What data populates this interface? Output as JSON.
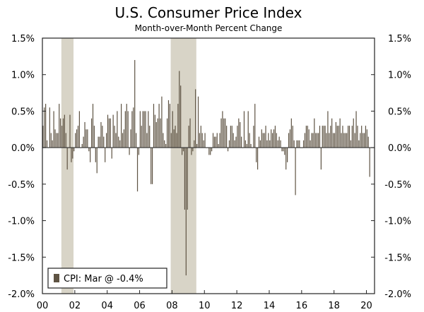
{
  "chart_data": {
    "type": "bar",
    "title": "U.S. Consumer Price Index",
    "subtitle": "Month-over-Month Percent Change",
    "xlabel": "",
    "ylabel": "",
    "ylim": [
      -2.0,
      1.5
    ],
    "y_ticks": [
      "1.5%",
      "1.0%",
      "0.5%",
      "0.0%",
      "-0.5%",
      "-1.0%",
      "-1.5%",
      "-2.0%"
    ],
    "y_tick_values": [
      1.5,
      1.0,
      0.5,
      0.0,
      -0.5,
      -1.0,
      -1.5,
      -2.0
    ],
    "x_ticks": [
      "00",
      "02",
      "04",
      "06",
      "08",
      "10",
      "12",
      "14",
      "16",
      "18",
      "20"
    ],
    "x_tick_years": [
      2000,
      2002,
      2004,
      2006,
      2008,
      2010,
      2012,
      2014,
      2016,
      2018,
      2020
    ],
    "x_range_years": [
      2000,
      2020.5
    ],
    "recession_shading": [
      {
        "start": 2001.17,
        "end": 2001.92
      },
      {
        "start": 2007.92,
        "end": 2009.5
      }
    ],
    "series": [
      {
        "name": "CPI",
        "start": "2000-01",
        "values": [
          0.3,
          0.55,
          0.6,
          0.1,
          0.0,
          0.55,
          0.2,
          0.1,
          0.5,
          0.25,
          0.2,
          0.2,
          0.6,
          0.4,
          0.3,
          0.4,
          0.45,
          0.2,
          -0.3,
          0.0,
          0.45,
          -0.2,
          -0.15,
          -0.05,
          0.2,
          0.25,
          0.3,
          0.5,
          0.0,
          0.05,
          0.15,
          0.35,
          0.25,
          0.25,
          -0.05,
          -0.2,
          0.4,
          0.6,
          0.3,
          -0.2,
          -0.35,
          0.15,
          0.15,
          0.35,
          0.3,
          0.15,
          -0.2,
          0.2,
          0.45,
          0.4,
          0.4,
          -0.15,
          0.45,
          0.3,
          0.2,
          0.5,
          0.15,
          0.1,
          0.6,
          0.2,
          0.25,
          0.5,
          0.6,
          0.5,
          -0.1,
          0.25,
          0.5,
          0.55,
          1.2,
          0.2,
          -0.6,
          -0.1,
          0.5,
          0.3,
          0.5,
          0.5,
          0.5,
          0.2,
          0.5,
          0.3,
          -0.5,
          -0.5,
          0.6,
          0.45,
          0.35,
          0.4,
          0.6,
          0.4,
          0.7,
          0.2,
          0.1,
          0.05,
          0.4,
          0.65,
          0.6,
          0.2,
          0.5,
          0.25,
          0.3,
          0.2,
          0.6,
          1.05,
          0.85,
          -0.1,
          -0.05,
          -0.85,
          -1.75,
          -0.85,
          0.3,
          0.4,
          -0.1,
          -0.05,
          0.1,
          0.8,
          0.05,
          0.7,
          0.2,
          0.3,
          0.2,
          0.1,
          0.2,
          0.0,
          0.0,
          -0.1,
          -0.1,
          -0.05,
          0.2,
          0.15,
          0.15,
          0.2,
          0.05,
          0.2,
          0.4,
          0.5,
          0.4,
          0.4,
          0.3,
          -0.05,
          0.1,
          0.3,
          0.3,
          0.2,
          0.1,
          0.15,
          0.3,
          0.4,
          0.35,
          0.15,
          0.0,
          0.5,
          0.1,
          0.05,
          0.5,
          0.2,
          0.05,
          0.0,
          0.3,
          0.6,
          -0.2,
          -0.3,
          0.15,
          0.1,
          0.25,
          0.2,
          0.2,
          0.3,
          0.1,
          0.2,
          0.1,
          0.25,
          0.2,
          0.25,
          0.3,
          0.2,
          0.1,
          0.15,
          0.1,
          -0.05,
          -0.05,
          -0.1,
          -0.3,
          -0.2,
          0.2,
          0.25,
          0.4,
          0.3,
          0.1,
          -0.65,
          0.1,
          0.1,
          0.1,
          0.0,
          0.0,
          0.1,
          0.2,
          0.3,
          0.3,
          0.25,
          0.1,
          0.2,
          0.2,
          0.4,
          0.2,
          0.2,
          0.2,
          0.3,
          -0.3,
          0.3,
          0.3,
          0.3,
          0.2,
          0.5,
          0.2,
          0.3,
          0.4,
          0.2,
          0.2,
          0.35,
          0.3,
          0.3,
          0.4,
          0.2,
          0.3,
          0.2,
          0.2,
          0.2,
          0.3,
          0.3,
          0.1,
          0.3,
          0.4,
          0.2,
          0.5,
          0.3,
          0.1,
          0.2,
          0.3,
          0.2,
          0.2,
          0.3,
          0.25,
          0.15,
          -0.4
        ]
      }
    ],
    "legend": {
      "label": "CPI: Mar @ -0.4%",
      "position": "bottom-left"
    }
  },
  "colors": {
    "bar": "#5e5343",
    "recession": "#d8d4c7",
    "axis": "#222222",
    "background": "#ffffff"
  }
}
